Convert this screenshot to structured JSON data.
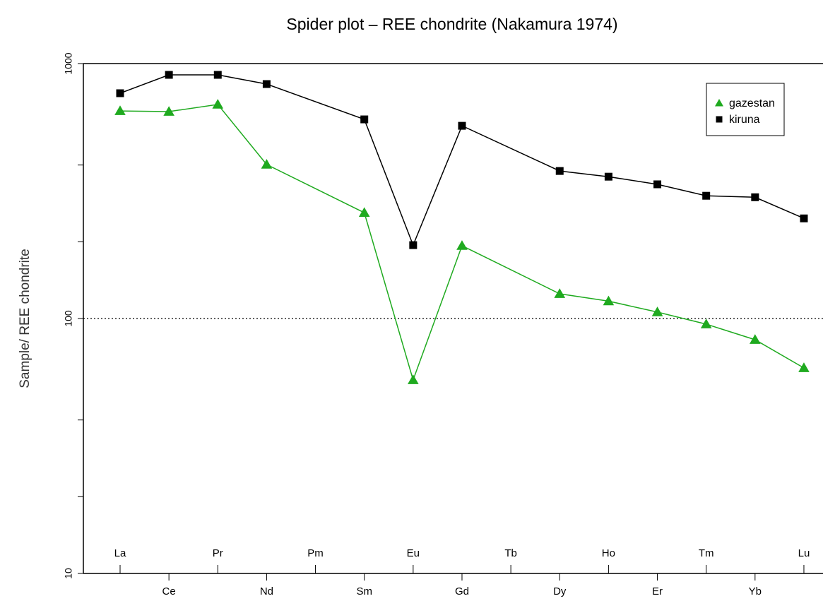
{
  "chart_data": {
    "type": "line",
    "title": "Spider plot – REE chondrite (Nakamura 1974)",
    "ylabel": "Sample/ REE chondrite",
    "categories": [
      "La",
      "Ce",
      "Pr",
      "Nd",
      "Pm",
      "Sm",
      "Eu",
      "Gd",
      "Tb",
      "Dy",
      "Ho",
      "Er",
      "Tm",
      "Yb",
      "Lu"
    ],
    "series": [
      {
        "name": "gazestan",
        "color": "#1faa1f",
        "marker": "triangle",
        "values": [
          652,
          648,
          691,
          402,
          null,
          260,
          57.4,
          193,
          null,
          125,
          117,
          106,
          95,
          82.6,
          64
        ]
      },
      {
        "name": "kiruna",
        "color": "#000000",
        "marker": "square",
        "values": [
          765,
          903,
          903,
          831,
          null,
          604,
          194,
          570,
          null,
          379,
          360,
          336,
          303,
          299,
          247
        ]
      }
    ],
    "log_y": true,
    "ylim": [
      10,
      1000
    ],
    "yticks": [
      10,
      100,
      1000
    ],
    "yminor_ticks": [
      20,
      40,
      200,
      400
    ],
    "reference_line": 100,
    "legend": "topright"
  }
}
